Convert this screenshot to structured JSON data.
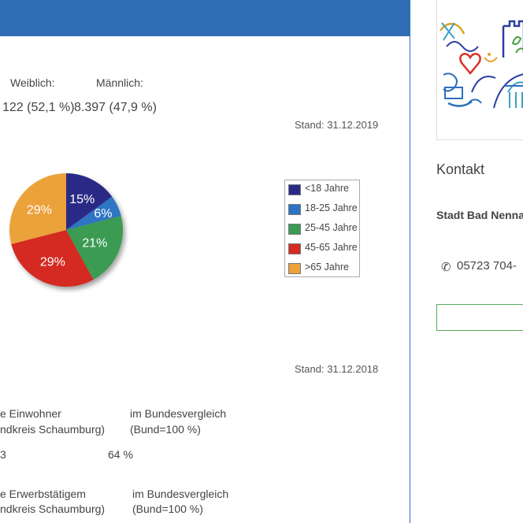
{
  "population": {
    "female_label": "Weiblich:",
    "male_label": "Männlich:",
    "female_value": "122 (52,1 %)",
    "male_value": "8.397 (47,9 %)",
    "stand_2019": "Stand: 31.12.2019"
  },
  "chart_data": {
    "type": "pie",
    "categories": [
      "<18 Jahre",
      "18-25 Jahre",
      "25-45 Jahre",
      "45-65 Jahre",
      ">65 Jahre"
    ],
    "values": [
      15,
      6,
      21,
      29,
      29
    ],
    "labels": [
      "15%",
      "6%",
      "21%",
      "29%",
      "29%"
    ],
    "colors": [
      "#2a2a86",
      "#2e74c4",
      "#3b9b53",
      "#d42b24",
      "#eca23a"
    ],
    "legend_position": "right"
  },
  "economy": {
    "stand_2018": "Stand: 31.12.2018",
    "row1_left_line1": "e Einwohner",
    "row1_left_line2": "ndkreis Schaumburg)",
    "row1_right_line1": "im Bundesvergleich",
    "row1_right_line2": "(Bund=100 %)",
    "row1_value_left": "3",
    "row1_value_right": "64 %",
    "row2_left_line1": "e Erwerbstätigem",
    "row2_left_line2": "ndkreis Schaumburg)",
    "row2_right_line1": "im Bundesvergleich",
    "row2_right_line2": "(Bund=100 %)"
  },
  "sidebar": {
    "contact_heading": "Kontakt",
    "org_name": "Stadt Bad Nenna",
    "phone": "05723 704-"
  }
}
